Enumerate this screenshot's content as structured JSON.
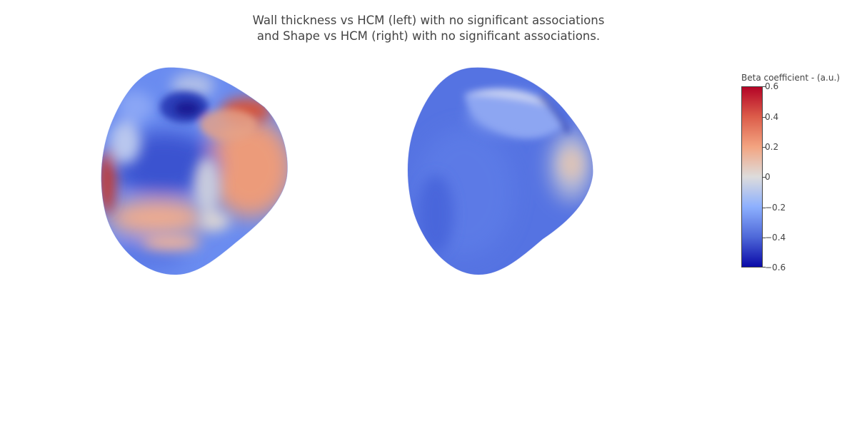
{
  "title": {
    "line1": "Wall thickness vs HCM (left) with no significant associations",
    "line2": "and Shape vs HCM (right) with no significant associations."
  },
  "panels": [
    {
      "name": "wall-thickness-surface"
    },
    {
      "name": "shape-surface"
    }
  ],
  "colorbar": {
    "title": "Beta coefficient - (a.u.)",
    "range": [
      -0.6,
      0.6
    ],
    "colors": [
      "#b40426",
      "#dc5d4a",
      "#f3a481",
      "#dddcdc",
      "#8db0fe",
      "#4f69d9",
      "#0a0aa8"
    ],
    "ticks": [
      "0.6",
      "0.4",
      "0.2",
      "0",
      "−0.2",
      "−0.4",
      "−0.6"
    ]
  }
}
